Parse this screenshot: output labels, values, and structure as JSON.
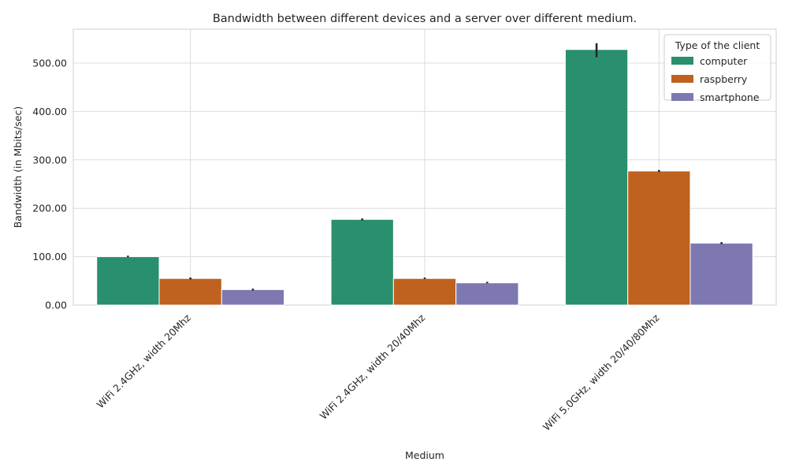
{
  "chart_data": {
    "type": "bar",
    "title": "Bandwidth between different devices and a server over different medium.",
    "xlabel": "Medium",
    "ylabel": "Bandwidth (in Mbits/sec)",
    "categories": [
      "WiFi 2.4GHz, width 20Mhz",
      "WiFi 2.4GHz, width 20/40Mhz",
      "WiFi 5.0GHz, width 20/40/80Mhz"
    ],
    "ylim": [
      0,
      570
    ],
    "yticks": [
      0,
      100,
      200,
      300,
      400,
      500
    ],
    "ytick_labels": [
      "0.00",
      "100.00",
      "200.00",
      "300.00",
      "400.00",
      "500.00"
    ],
    "grid": true,
    "legend": {
      "title": "Type of the client",
      "placement": "top-right"
    },
    "series": [
      {
        "name": "computer",
        "color": "#2a8f6f",
        "values": [
          100,
          177,
          528
        ],
        "err_low": [
          99,
          175,
          512
        ],
        "err_high": [
          102,
          179,
          541
        ]
      },
      {
        "name": "raspberry",
        "color": "#bf611f",
        "values": [
          55,
          55,
          277
        ],
        "err_low": [
          53,
          54,
          275
        ],
        "err_high": [
          57,
          57,
          279
        ]
      },
      {
        "name": "smartphone",
        "color": "#7e78b1",
        "values": [
          32,
          46,
          128
        ],
        "err_low": [
          30,
          45,
          126
        ],
        "err_high": [
          34,
          48,
          130
        ]
      }
    ]
  }
}
